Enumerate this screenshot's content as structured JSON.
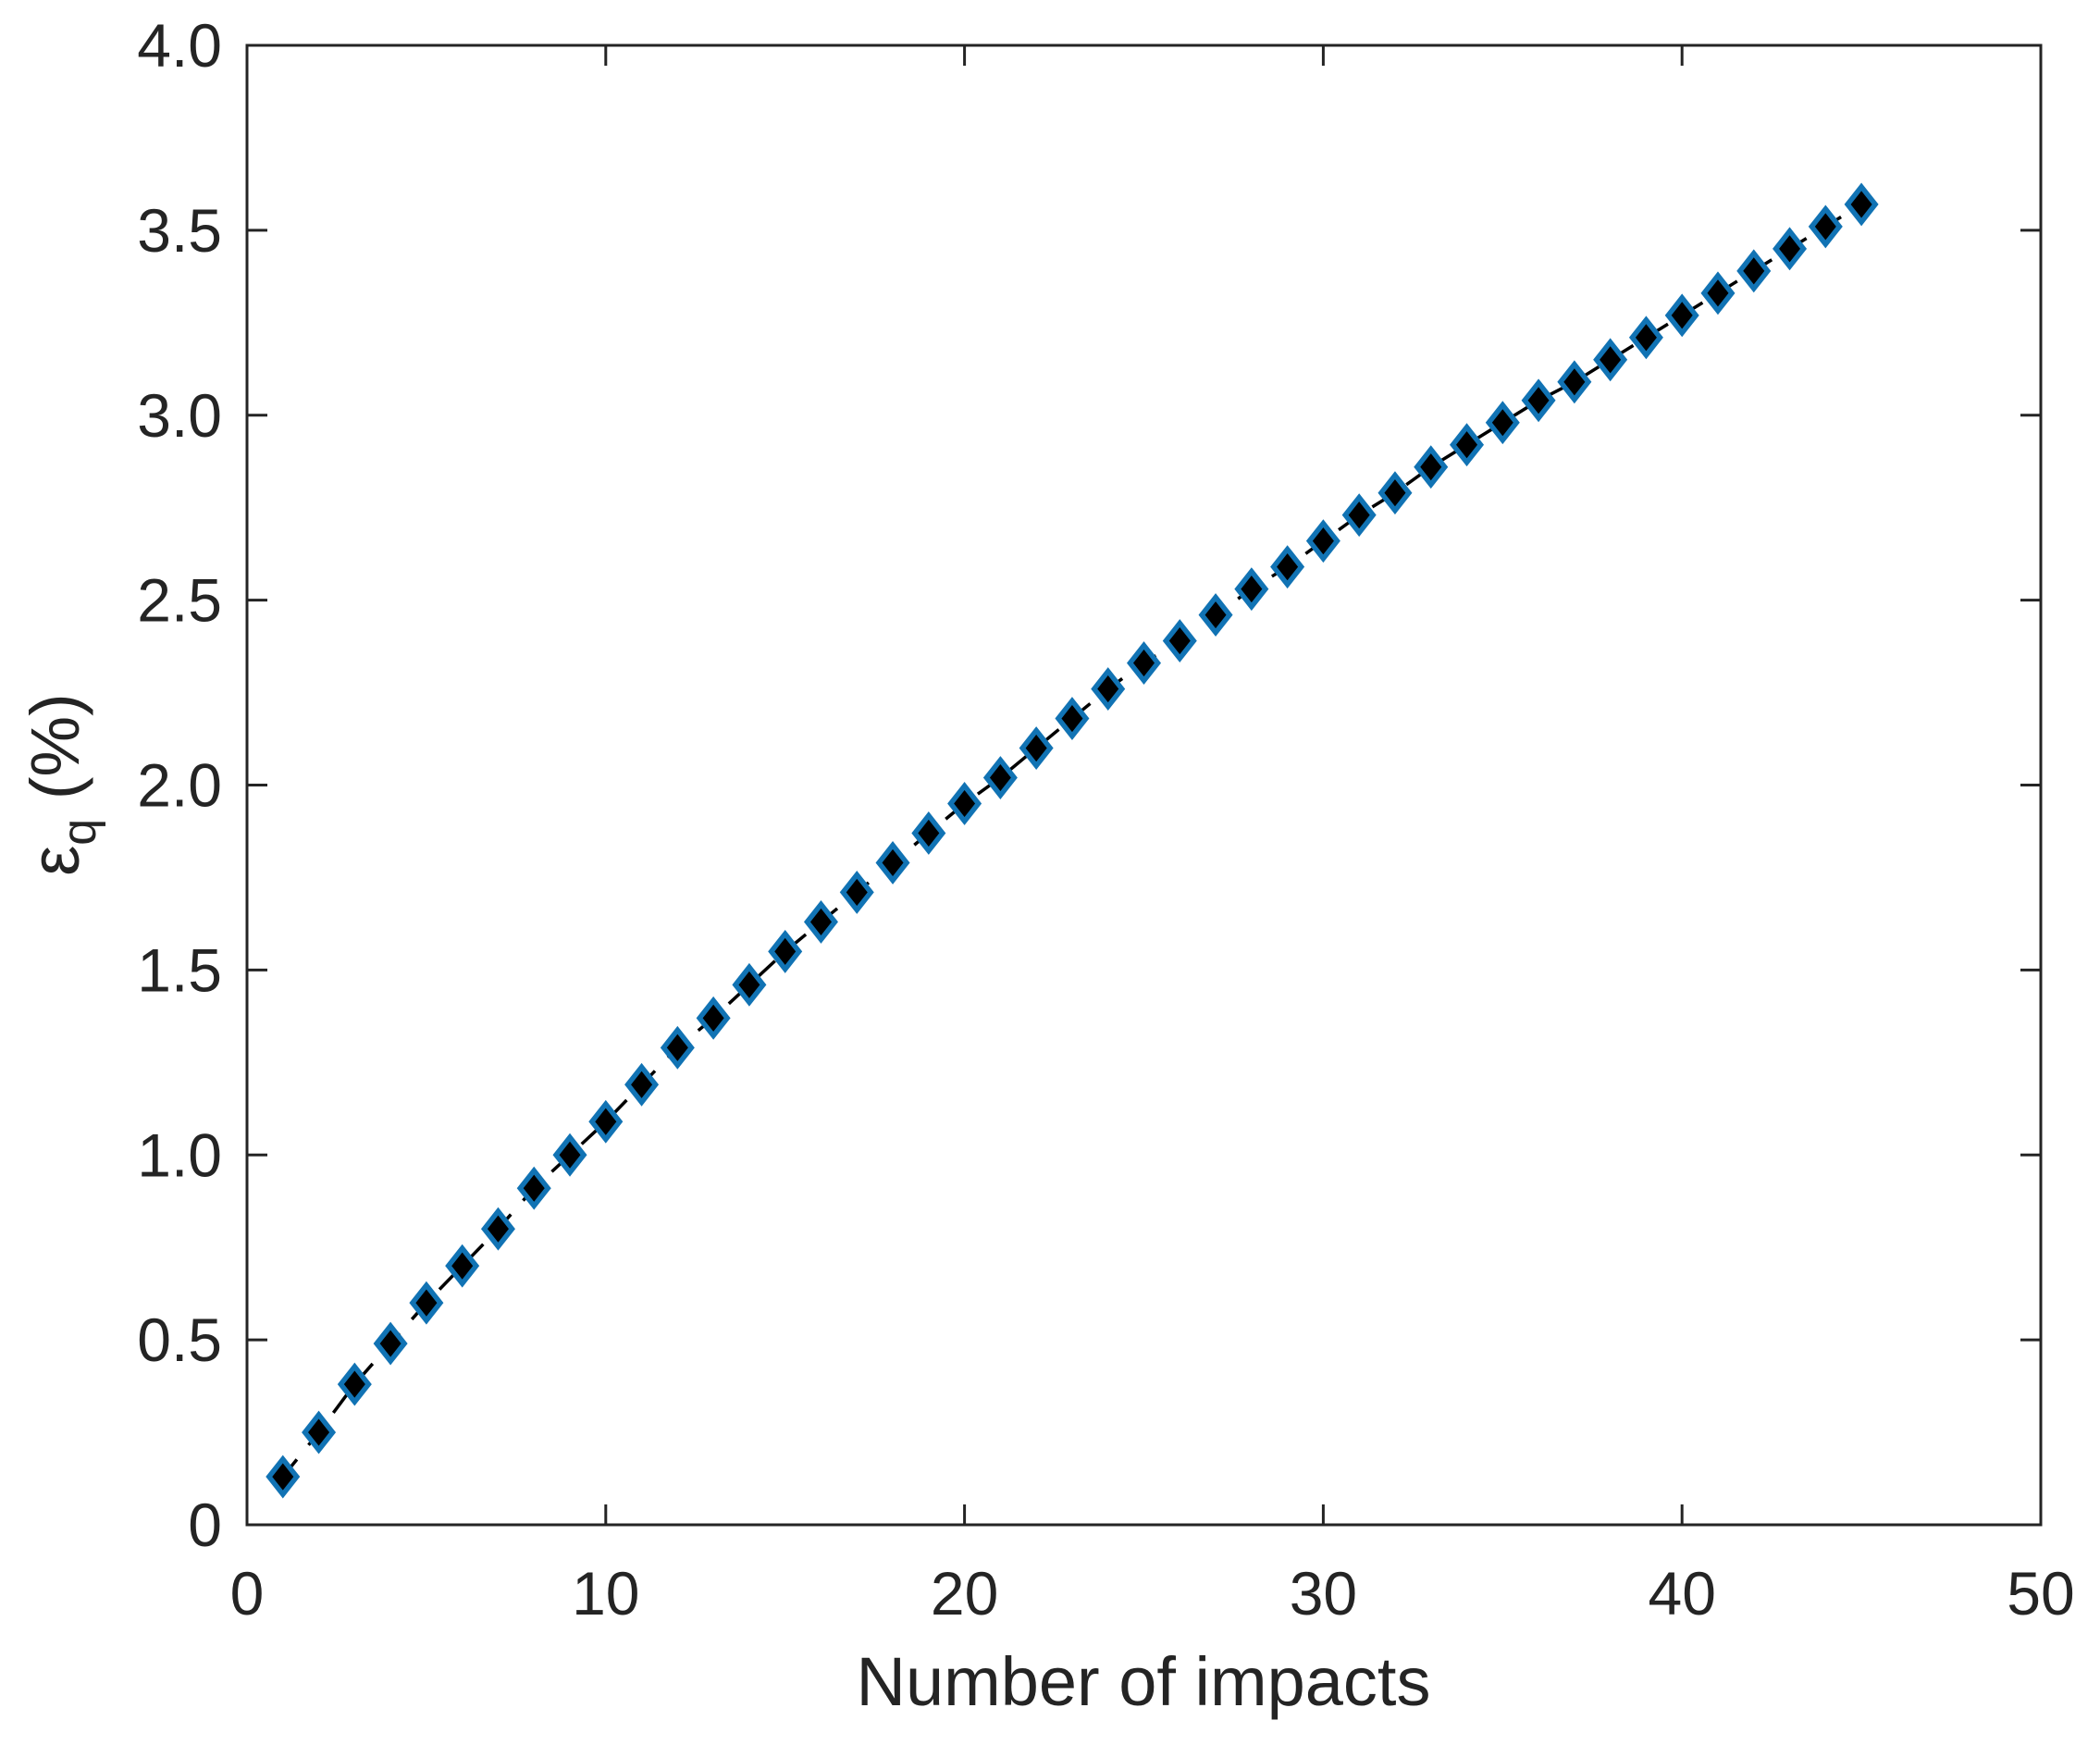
{
  "figure": {
    "background": "#ffffff",
    "axis_color": "#242424",
    "plot_border_color": "#242424"
  },
  "chart_data": {
    "type": "scatter",
    "title": "",
    "xlabel": "Number of impacts",
    "ylabel": "ε_q (%)",
    "ylabel_parts": {
      "symbol": "ε",
      "subscript": "q",
      "unit": " (%)"
    },
    "x": [
      1,
      2,
      3,
      4,
      5,
      6,
      7,
      8,
      9,
      10,
      11,
      12,
      13,
      14,
      15,
      16,
      17,
      18,
      19,
      20,
      21,
      22,
      23,
      24,
      25,
      26,
      27,
      28,
      29,
      30,
      31,
      32,
      33,
      34,
      35,
      36,
      37,
      38,
      39,
      40,
      41,
      42,
      43,
      44,
      45
    ],
    "y": [
      0.13,
      0.25,
      0.38,
      0.49,
      0.6,
      0.7,
      0.8,
      0.91,
      1.0,
      1.09,
      1.19,
      1.29,
      1.37,
      1.46,
      1.55,
      1.63,
      1.71,
      1.79,
      1.87,
      1.95,
      2.02,
      2.1,
      2.18,
      2.26,
      2.33,
      2.39,
      2.46,
      2.53,
      2.59,
      2.66,
      2.73,
      2.79,
      2.86,
      2.92,
      2.98,
      3.04,
      3.09,
      3.15,
      3.21,
      3.27,
      3.33,
      3.39,
      3.45,
      3.51,
      3.57
    ],
    "xlim": [
      0,
      50
    ],
    "ylim": [
      0,
      4
    ],
    "xticks": {
      "values": [
        0,
        10,
        20,
        30,
        40,
        50
      ],
      "labels": [
        "0",
        "10",
        "20",
        "30",
        "40",
        "50"
      ]
    },
    "yticks": {
      "values": [
        0,
        0.5,
        1,
        1.5,
        2,
        2.5,
        3,
        3.5,
        4
      ],
      "labels": [
        "0",
        "0.5",
        "1.0",
        "1.5",
        "2.0",
        "2.5",
        "3.0",
        "3.5",
        "4.0"
      ]
    },
    "grid": false,
    "legend": null,
    "marker": {
      "shape": "diamond",
      "fill": "#000000",
      "edge": "#1173b4"
    },
    "line": {
      "style": "dashed",
      "color": "#000000"
    }
  }
}
